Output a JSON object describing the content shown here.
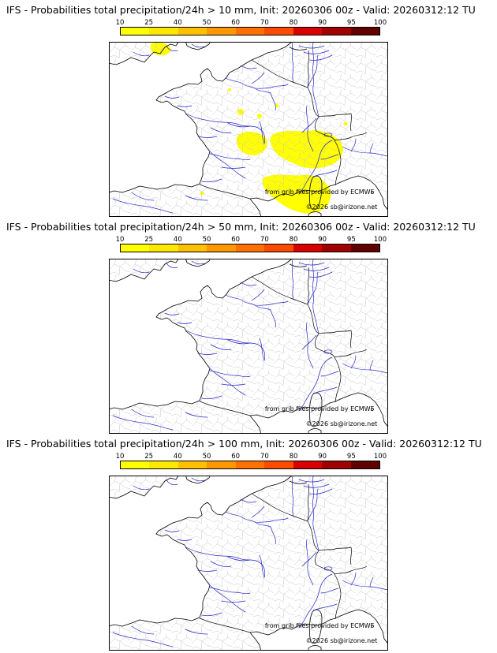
{
  "panels": [
    {
      "title": "IFS - Probabilities total precipitation/24h > 10 mm, Init: 20260306 00z - Valid: 20260312:12 TU",
      "has_precip_overlay": true
    },
    {
      "title": "IFS - Probabilities total precipitation/24h > 50 mm, Init: 20260306 00z - Valid: 20260312:12 TU",
      "has_precip_overlay": false
    },
    {
      "title": "IFS - Probabilities total precipitation/24h > 100 mm, Init: 20260306 00z - Valid: 20260312:12 TU",
      "has_precip_overlay": false
    }
  ],
  "colorbar": {
    "ticks": [
      "10",
      "25",
      "40",
      "50",
      "60",
      "70",
      "80",
      "90",
      "95",
      "100"
    ],
    "colors": [
      "#ffff00",
      "#ffe800",
      "#ffc000",
      "#ff9800",
      "#ff7000",
      "#fb4b00",
      "#d90000",
      "#a00000",
      "#600000"
    ]
  },
  "map": {
    "attribution_line1": "from grib files provided by ECMWF",
    "attribution_line2": "©2026 sb@irizone.net"
  }
}
